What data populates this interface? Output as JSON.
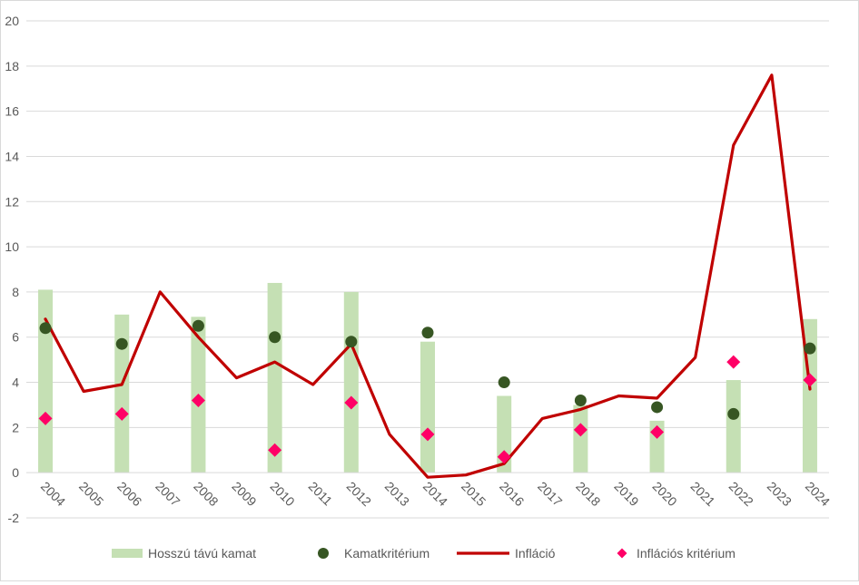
{
  "chart_data": {
    "type": "bar",
    "title": "",
    "xlabel": "",
    "ylabel": "",
    "ylim": [
      -2,
      20
    ],
    "yticks": [
      -2,
      0,
      2,
      4,
      6,
      8,
      10,
      12,
      14,
      16,
      18,
      20
    ],
    "grid": true,
    "legend_position": "bottom",
    "categories": [
      "2004",
      "2005",
      "2006",
      "2007",
      "2008",
      "2009",
      "2010",
      "2011",
      "2012",
      "2013",
      "2014",
      "2015",
      "2016",
      "2017",
      "2018",
      "2019",
      "2020",
      "2021",
      "2022",
      "2023",
      "2024"
    ],
    "series": [
      {
        "name": "Hosszú távú kamat",
        "kind": "bar",
        "color": "#c5e0b4",
        "values": [
          8.1,
          null,
          7.0,
          null,
          6.9,
          null,
          8.4,
          null,
          8.0,
          null,
          5.8,
          null,
          3.4,
          null,
          3.0,
          null,
          2.3,
          null,
          4.1,
          null,
          6.8
        ]
      },
      {
        "name": "Kamatkritérium",
        "kind": "scatter",
        "marker": "circle",
        "color": "#375623",
        "values": [
          6.4,
          null,
          5.7,
          null,
          6.5,
          null,
          6.0,
          null,
          5.8,
          null,
          6.2,
          null,
          4.0,
          null,
          3.2,
          null,
          2.9,
          null,
          2.6,
          null,
          5.5
        ]
      },
      {
        "name": "Infláció",
        "kind": "line",
        "color": "#c00000",
        "values": [
          6.8,
          3.6,
          3.9,
          8.0,
          6.0,
          4.2,
          4.9,
          3.9,
          5.7,
          1.7,
          -0.2,
          -0.1,
          0.4,
          2.4,
          2.8,
          3.4,
          3.3,
          5.1,
          14.5,
          17.6,
          3.7
        ]
      },
      {
        "name": "Inflációs kritérium",
        "kind": "scatter",
        "marker": "diamond",
        "color": "#ff0066",
        "values": [
          2.4,
          null,
          2.6,
          null,
          3.2,
          null,
          1.0,
          null,
          3.1,
          null,
          1.7,
          null,
          0.7,
          null,
          1.9,
          null,
          1.8,
          null,
          4.9,
          null,
          4.1
        ]
      }
    ]
  }
}
